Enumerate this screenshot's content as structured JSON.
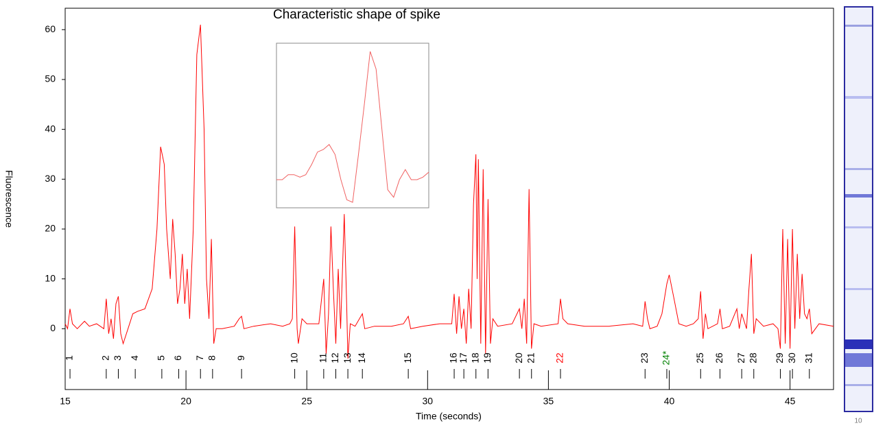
{
  "chart_data": {
    "type": "line",
    "title": "Characteristic shape of spike",
    "xlabel": "Time (seconds)",
    "ylabel": "Fluorescence",
    "xlim": [
      15,
      46.8
    ],
    "ylim": [
      -12.2,
      64.3
    ],
    "xticks": [
      15,
      20,
      25,
      30,
      35,
      40,
      45
    ],
    "yticks": [
      0,
      10,
      20,
      30,
      40,
      50,
      60
    ],
    "color": "#ff0000",
    "x": [
      15.0,
      15.1,
      15.2,
      15.3,
      15.5,
      15.8,
      16.0,
      16.3,
      16.6,
      16.7,
      16.8,
      16.9,
      17.0,
      17.1,
      17.2,
      17.3,
      17.4,
      17.6,
      17.8,
      18.0,
      18.3,
      18.6,
      18.8,
      18.95,
      19.1,
      19.2,
      19.35,
      19.45,
      19.55,
      19.65,
      19.75,
      19.85,
      19.95,
      20.05,
      20.15,
      20.3,
      20.45,
      20.6,
      20.75,
      20.85,
      20.95,
      21.05,
      21.15,
      21.25,
      21.5,
      22.0,
      22.2,
      22.3,
      22.4,
      22.8,
      23.5,
      24.0,
      24.3,
      24.4,
      24.5,
      24.6,
      24.65,
      24.8,
      25.0,
      25.5,
      25.7,
      25.8,
      25.9,
      26.0,
      26.1,
      26.2,
      26.3,
      26.4,
      26.55,
      26.65,
      26.7,
      26.8,
      27.0,
      27.3,
      27.4,
      27.8,
      28.5,
      29.0,
      29.2,
      29.3,
      29.8,
      30.5,
      31.0,
      31.1,
      31.2,
      31.3,
      31.4,
      31.5,
      31.6,
      31.7,
      31.8,
      31.9,
      32.0,
      32.05,
      32.1,
      32.2,
      32.3,
      32.4,
      32.5,
      32.6,
      32.7,
      32.9,
      33.5,
      33.8,
      33.9,
      34.0,
      34.1,
      34.2,
      34.3,
      34.4,
      34.7,
      35.4,
      35.5,
      35.6,
      35.8,
      36.5,
      37.5,
      38.5,
      38.9,
      39.0,
      39.1,
      39.2,
      39.5,
      39.7,
      39.9,
      40.0,
      40.2,
      40.4,
      40.7,
      41.0,
      41.2,
      41.3,
      41.4,
      41.5,
      41.6,
      42.0,
      42.1,
      42.2,
      42.5,
      42.8,
      42.9,
      43.0,
      43.2,
      43.3,
      43.4,
      43.5,
      43.6,
      43.9,
      44.3,
      44.5,
      44.6,
      44.7,
      44.8,
      44.9,
      45.0,
      45.1,
      45.2,
      45.3,
      45.4,
      45.5,
      45.6,
      45.7,
      45.8,
      45.9,
      46.2,
      46.8
    ],
    "values": [
      1,
      0,
      4,
      1,
      0,
      1.5,
      0.5,
      1,
      0,
      6,
      -1,
      2,
      -2,
      5,
      6.5,
      -1,
      -3,
      0,
      3,
      3.5,
      4,
      8,
      20,
      36.5,
      33,
      20,
      10,
      22,
      15,
      5,
      8,
      15,
      5,
      12,
      2,
      20,
      55,
      61,
      40,
      10,
      2,
      18,
      -3,
      0,
      0,
      0.5,
      2,
      2.5,
      0,
      0.5,
      1,
      0.5,
      1,
      2,
      20.5,
      0,
      -3,
      2,
      1,
      1,
      10,
      -5,
      3,
      20.5,
      8,
      -3,
      12,
      0,
      23,
      5,
      -6,
      1,
      0.5,
      3,
      0,
      0.5,
      0.5,
      1,
      2.5,
      0,
      0.5,
      1,
      1,
      7,
      -1,
      6.5,
      0,
      4,
      -3,
      8,
      0,
      25,
      35,
      10,
      34,
      -3,
      32,
      -5,
      26,
      -3,
      2,
      0.5,
      1,
      4,
      0,
      6,
      -3,
      28,
      -4,
      1,
      0.5,
      1,
      6,
      2,
      1,
      0.5,
      0.5,
      1,
      0.5,
      5.5,
      2,
      0,
      0.5,
      3,
      9,
      10.8,
      6,
      1,
      0.5,
      1,
      2,
      7.5,
      -2,
      3,
      0,
      1,
      4,
      0,
      0.5,
      4,
      0,
      3,
      0,
      8,
      15,
      -1,
      2,
      0.5,
      1,
      0,
      -4,
      20,
      -3,
      18,
      -4,
      20,
      0,
      15,
      2,
      11,
      3,
      2,
      4,
      -1,
      1,
      0.5
    ],
    "spike_labels": [
      "1",
      "2",
      "3",
      "4",
      "5",
      "6",
      "7",
      "8",
      "9",
      "10",
      "11",
      "12",
      "13",
      "14",
      "15",
      "16",
      "17",
      "18",
      "19",
      "20",
      "21",
      "22",
      "23",
      "24*",
      "25",
      "26",
      "27",
      "28",
      "29",
      "30",
      "31"
    ],
    "spike_times": [
      15.2,
      16.7,
      17.2,
      17.9,
      19.0,
      19.7,
      20.6,
      21.1,
      22.3,
      24.5,
      25.7,
      26.2,
      26.7,
      27.3,
      29.2,
      31.1,
      31.5,
      32.0,
      32.5,
      33.8,
      34.3,
      35.5,
      39.0,
      39.9,
      41.3,
      42.1,
      43.0,
      43.5,
      44.6,
      45.1,
      45.8
    ],
    "spike_colors": [
      "#000000",
      "#000000",
      "#000000",
      "#000000",
      "#000000",
      "#000000",
      "#000000",
      "#000000",
      "#000000",
      "#000000",
      "#000000",
      "#000000",
      "#000000",
      "#000000",
      "#000000",
      "#000000",
      "#000000",
      "#000000",
      "#000000",
      "#000000",
      "#000000",
      "#ff0000",
      "#000000",
      "#008000",
      "#000000",
      "#000000",
      "#000000",
      "#000000",
      "#000000",
      "#000000",
      "#000000"
    ],
    "inset_values": [
      30,
      30,
      31,
      31,
      30.5,
      31,
      33,
      35.5,
      36,
      37,
      35,
      30,
      26,
      25.5,
      35,
      45,
      55.5,
      52,
      40,
      28,
      26.5,
      30,
      32,
      30,
      30,
      30.5,
      31.5
    ]
  },
  "side_panel_label": "10"
}
